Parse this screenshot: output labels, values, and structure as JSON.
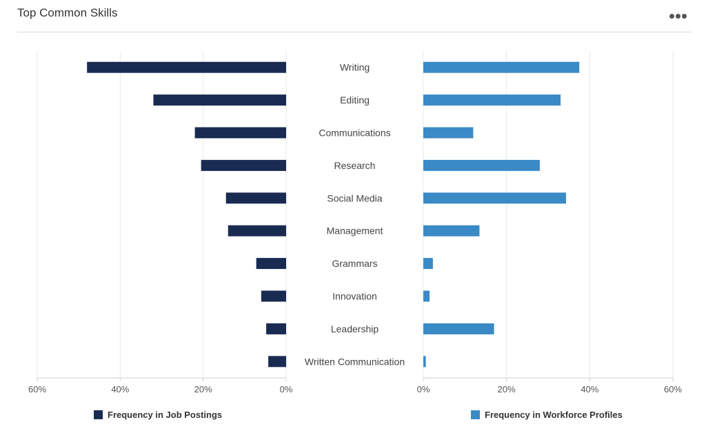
{
  "header": {
    "title": "Top Common Skills"
  },
  "colors": {
    "job_postings": "#1a2b52",
    "workforce_profiles": "#3a8ac6",
    "gridline": "#e9e9e9",
    "axis": "#cfcfcf"
  },
  "chart_data": {
    "type": "bar",
    "orientation": "horizontal",
    "categories": [
      "Writing",
      "Editing",
      "Communications",
      "Research",
      "Social Media",
      "Management",
      "Grammars",
      "Innovation",
      "Leadership",
      "Written Communication"
    ],
    "series": [
      {
        "name": "Frequency in Job Postings",
        "values": [
          48,
          32,
          22,
          20.5,
          14.5,
          14,
          7.2,
          6,
          4.8,
          4.3
        ]
      },
      {
        "name": "Frequency in Workforce Profiles",
        "values": [
          37.5,
          33,
          12,
          28,
          34.3,
          13.5,
          2.3,
          1.5,
          17,
          0.6
        ]
      }
    ],
    "left_ticks": [
      "60%",
      "40%",
      "20%",
      "0%"
    ],
    "right_ticks": [
      "0%",
      "20%",
      "40%",
      "60%"
    ],
    "xlim": [
      0,
      60
    ],
    "grid": true,
    "legend_position": "bottom"
  }
}
